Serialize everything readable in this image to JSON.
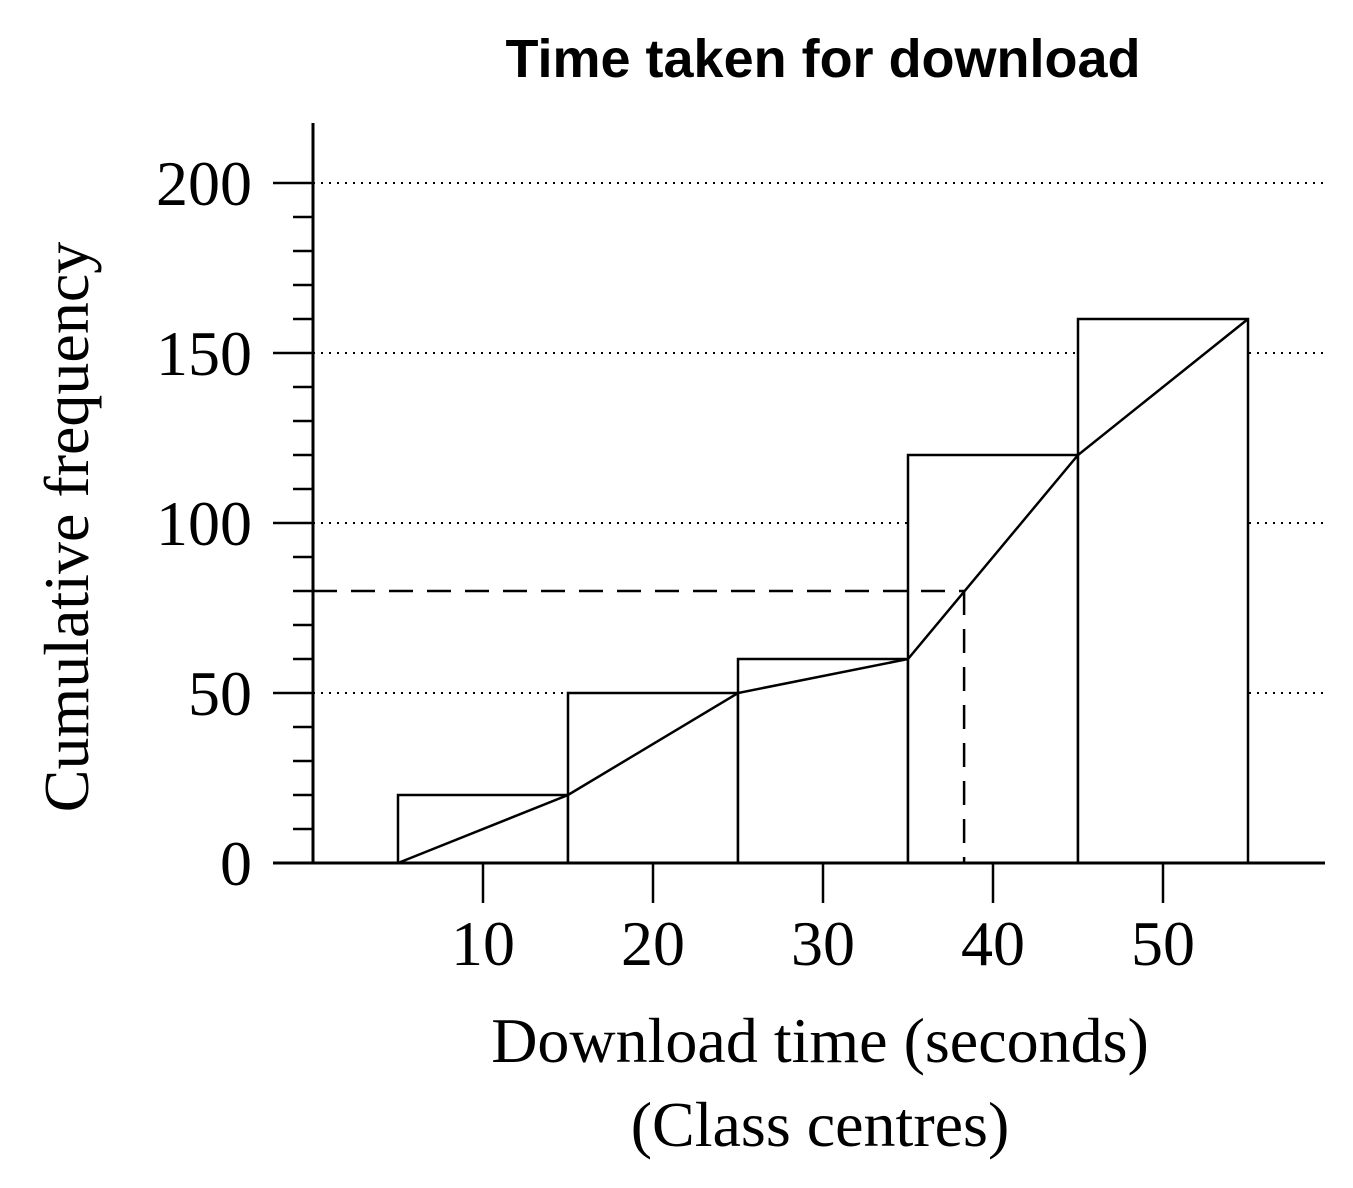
{
  "chart_data": {
    "type": "bar",
    "title": "Time taken for download",
    "xlabel": [
      "Download time (seconds)",
      "(Class centres)"
    ],
    "ylabel": "Cumulative frequency",
    "categories": [
      "10",
      "20",
      "30",
      "40",
      "50"
    ],
    "x_ticks": [
      10,
      20,
      30,
      40,
      50
    ],
    "y_ticks": [
      0,
      50,
      100,
      150,
      200
    ],
    "y_minor_step": 10,
    "xlim": [
      0,
      60
    ],
    "ylim": [
      0,
      220
    ],
    "class_width": 10,
    "series": [
      {
        "values": [
          20,
          50,
          60,
          120,
          160
        ]
      }
    ],
    "polygon": [
      {
        "x": 5,
        "y": 0
      },
      {
        "x": 15,
        "y": 20
      },
      {
        "x": 25,
        "y": 50
      },
      {
        "x": 35,
        "y": 60
      },
      {
        "x": 45,
        "y": 120
      },
      {
        "x": 55,
        "y": 160
      }
    ],
    "median_marker": {
      "x": 38.3,
      "y": 80
    },
    "grid": {
      "y_major": true,
      "style": "dotted"
    }
  }
}
